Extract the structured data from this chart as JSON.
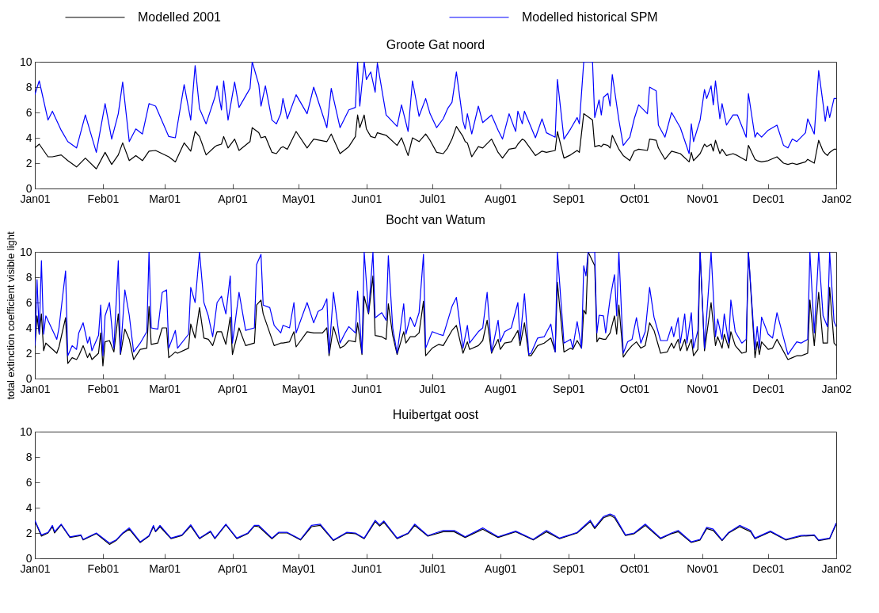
{
  "chart_data": [
    {
      "type": "line",
      "title": "Groote Gat noord",
      "legend": "top",
      "xlim": [
        "2001-01-01",
        "2002-01-01"
      ],
      "xticks": [
        {
          "value": "2001-01-01",
          "label": "Jan01"
        },
        {
          "value": "2001-02-01",
          "label": "Feb01"
        },
        {
          "value": "2001-03-01",
          "label": "Mar01"
        },
        {
          "value": "2001-04-01",
          "label": "Apr01"
        },
        {
          "value": "2001-05-01",
          "label": "May01"
        },
        {
          "value": "2001-06-01",
          "label": "Jun01"
        },
        {
          "value": "2001-07-01",
          "label": "Jul01"
        },
        {
          "value": "2001-08-01",
          "label": "Aug01"
        },
        {
          "value": "2001-09-01",
          "label": "Sep01"
        },
        {
          "value": "2001-10-01",
          "label": "Oct01"
        },
        {
          "value": "2001-11-01",
          "label": "Nov01"
        },
        {
          "value": "2001-12-01",
          "label": "Dec01"
        },
        {
          "value": "2002-01-01",
          "label": "Jan02"
        }
      ],
      "ylim": [
        0,
        10
      ],
      "yticks": [
        0,
        2,
        4,
        6,
        8,
        10
      ],
      "x": [
        "2001-01-01",
        "2001-01-03",
        "2001-01-07",
        "2001-01-09",
        "2001-01-13",
        "2001-01-16",
        "2001-01-20",
        "2001-01-24",
        "2001-01-29",
        "2001-02-02",
        "2001-02-05",
        "2001-02-08",
        "2001-02-10",
        "2001-02-13",
        "2001-02-16",
        "2001-02-19",
        "2001-02-22",
        "2001-02-25",
        "2001-03-03",
        "2001-03-06",
        "2001-03-10",
        "2001-03-13",
        "2001-03-15",
        "2001-03-17",
        "2001-03-20",
        "2001-03-24",
        "2001-03-25",
        "2001-03-27",
        "2001-03-28",
        "2001-03-30",
        "2001-04-02",
        "2001-04-04",
        "2001-04-09",
        "2001-04-10",
        "2001-04-13",
        "2001-04-14",
        "2001-04-16",
        "2001-04-19",
        "2001-04-21",
        "2001-04-23",
        "2001-04-24",
        "2001-04-26",
        "2001-04-30",
        "2001-05-05",
        "2001-05-08",
        "2001-05-14",
        "2001-05-16",
        "2001-05-20",
        "2001-05-24",
        "2001-05-27",
        "2001-05-28",
        "2001-05-29",
        "2001-05-31",
        "2001-06-01",
        "2001-06-03",
        "2001-06-05",
        "2001-06-06",
        "2001-06-10",
        "2001-06-15",
        "2001-06-17",
        "2001-06-20",
        "2001-06-22",
        "2001-06-25",
        "2001-06-28",
        "2001-06-30",
        "2001-07-03",
        "2001-07-06",
        "2001-07-08",
        "2001-07-10",
        "2001-07-12",
        "2001-07-15",
        "2001-07-16",
        "2001-07-17",
        "2001-07-19",
        "2001-07-22",
        "2001-07-24",
        "2001-07-28",
        "2001-07-31",
        "2001-08-02",
        "2001-08-05",
        "2001-08-08",
        "2001-08-09",
        "2001-08-11",
        "2001-08-12",
        "2001-08-17",
        "2001-08-20",
        "2001-08-22",
        "2001-08-26",
        "2001-08-27",
        "2001-08-30",
        "2001-09-02",
        "2001-09-05",
        "2001-09-06",
        "2001-09-08",
        "2001-09-12",
        "2001-09-13",
        "2001-09-15",
        "2001-09-16",
        "2001-09-17",
        "2001-09-19",
        "2001-09-20",
        "2001-09-21",
        "2001-09-24",
        "2001-09-26",
        "2001-09-29",
        "2001-10-01",
        "2001-10-03",
        "2001-10-07",
        "2001-10-08",
        "2001-10-11",
        "2001-10-12",
        "2001-10-15",
        "2001-10-18",
        "2001-10-22",
        "2001-10-26",
        "2001-10-27",
        "2001-10-28",
        "2001-10-31",
        "2001-11-02",
        "2001-11-03",
        "2001-11-05",
        "2001-11-06",
        "2001-11-07",
        "2001-11-09",
        "2001-11-10",
        "2001-11-12",
        "2001-11-15",
        "2001-11-17",
        "2001-11-21",
        "2001-11-22",
        "2001-11-25",
        "2001-11-26",
        "2001-11-28",
        "2001-12-01",
        "2001-12-05",
        "2001-12-08",
        "2001-12-10",
        "2001-12-12",
        "2001-12-14",
        "2001-12-18",
        "2001-12-19",
        "2001-12-22",
        "2001-12-24",
        "2001-12-26",
        "2001-12-27",
        "2001-12-28",
        "2001-12-29",
        "2001-12-31",
        "2002-01-01"
      ],
      "series": [
        {
          "name": "Modelled 2001",
          "color": "#000000",
          "values": [
            3.2,
            3.5,
            2.5,
            2.5,
            2.65,
            2.2,
            1.7,
            2.4,
            1.55,
            2.85,
            1.9,
            2.65,
            3.6,
            2.2,
            2.6,
            2.2,
            2.95,
            3.0,
            2.5,
            2.1,
            3.6,
            2.95,
            4.5,
            4.1,
            2.65,
            3.3,
            3.4,
            3.5,
            4.1,
            3.2,
            3.9,
            3.0,
            3.7,
            4.8,
            4.4,
            4.0,
            4.1,
            2.85,
            2.75,
            3.2,
            3.3,
            3.1,
            4.5,
            3.2,
            3.9,
            3.7,
            4.3,
            2.75,
            3.3,
            4.1,
            5.8,
            4.8,
            5.8,
            4.7,
            4.1,
            4.0,
            4.4,
            4.2,
            3.4,
            4.0,
            2.6,
            4.0,
            3.7,
            4.3,
            3.8,
            2.85,
            2.75,
            3.2,
            3.9,
            4.9,
            4.1,
            3.7,
            3.6,
            2.5,
            3.3,
            3.2,
            3.9,
            2.85,
            2.4,
            3.1,
            3.2,
            3.5,
            3.9,
            3.8,
            2.6,
            2.95,
            2.85,
            3.0,
            4.5,
            2.4,
            2.65,
            3.0,
            2.85,
            5.9,
            5.4,
            3.3,
            3.4,
            3.3,
            3.5,
            3.4,
            3.2,
            4.2,
            3.1,
            2.6,
            2.2,
            2.95,
            3.1,
            3.0,
            3.9,
            3.8,
            3.2,
            2.3,
            2.95,
            2.75,
            2.1,
            2.85,
            2.2,
            2.75,
            3.5,
            3.3,
            3.5,
            2.95,
            3.8,
            2.75,
            3.1,
            2.6,
            2.75,
            2.6,
            2.2,
            3.4,
            2.3,
            2.2,
            2.1,
            2.2,
            2.5,
            2.0,
            1.9,
            2.0,
            1.9,
            2.1,
            2.3,
            2.0,
            3.8,
            2.95,
            2.75,
            2.6,
            2.85,
            3.1,
            3.1
          ]
        },
        {
          "name": "Modelled historical SPM",
          "color": "#0000ff",
          "values": [
            7.4,
            8.5,
            5.4,
            6.1,
            4.6,
            3.7,
            3.2,
            5.8,
            2.85,
            6.7,
            3.9,
            5.9,
            8.4,
            3.7,
            4.7,
            4.3,
            6.7,
            6.5,
            4.1,
            4.0,
            8.2,
            5.4,
            9.7,
            6.3,
            5.1,
            7.2,
            8.1,
            6.2,
            8.5,
            5.4,
            8.4,
            6.4,
            7.9,
            10,
            8.2,
            6.5,
            8.1,
            5.4,
            5.1,
            5.9,
            7.1,
            5.5,
            7.4,
            5.9,
            8.0,
            4.8,
            7.9,
            4.8,
            6.2,
            6.4,
            10,
            6.5,
            10,
            8.6,
            9.2,
            7.6,
            9.9,
            5.8,
            4.9,
            6.6,
            4.5,
            8.5,
            5.7,
            7.1,
            5.9,
            4.8,
            5.5,
            6.3,
            6.8,
            9.2,
            5.3,
            4.7,
            5.9,
            4.3,
            6.5,
            5.2,
            5.8,
            4.6,
            3.9,
            5.9,
            4.5,
            6.1,
            5.1,
            6.1,
            4.0,
            5.5,
            4.4,
            4.05,
            8.6,
            3.9,
            4.7,
            5.6,
            5.1,
            10,
            10,
            5.6,
            7.0,
            5.8,
            7.2,
            7.5,
            6.5,
            9.0,
            5.4,
            3.4,
            4.05,
            5.5,
            6.6,
            5.9,
            8.0,
            7.7,
            5.0,
            4.05,
            6.0,
            4.8,
            2.75,
            5.1,
            3.7,
            5.4,
            7.8,
            7.1,
            8.1,
            6.6,
            8.5,
            5.5,
            6.7,
            5.0,
            5.8,
            5.8,
            4.05,
            7.5,
            4.05,
            4.4,
            4.05,
            4.6,
            5.0,
            3.4,
            3.2,
            3.9,
            3.7,
            4.4,
            5.5,
            4.3,
            9.3,
            6.7,
            5.3,
            6.5,
            5.6,
            7.1,
            7.1
          ]
        }
      ]
    },
    {
      "type": "line",
      "title": "Bocht van Watum",
      "ylabel": "total extinction coefficient visible light",
      "xlim": [
        "2001-01-01",
        "2002-01-01"
      ],
      "xticks": [
        {
          "value": "2001-01-01",
          "label": "Jan01"
        },
        {
          "value": "2001-02-01",
          "label": "Feb01"
        },
        {
          "value": "2001-03-01",
          "label": "Mar01"
        },
        {
          "value": "2001-04-01",
          "label": "Apr01"
        },
        {
          "value": "2001-05-01",
          "label": "May01"
        },
        {
          "value": "2001-06-01",
          "label": "Jun01"
        },
        {
          "value": "2001-07-01",
          "label": "Jul01"
        },
        {
          "value": "2001-08-01",
          "label": "Aug01"
        },
        {
          "value": "2001-09-01",
          "label": "Sep01"
        },
        {
          "value": "2001-10-01",
          "label": "Oct01"
        },
        {
          "value": "2001-11-01",
          "label": "Nov01"
        },
        {
          "value": "2001-12-01",
          "label": "Dec01"
        },
        {
          "value": "2002-01-01",
          "label": "Jan02"
        }
      ],
      "ylim": [
        0,
        10
      ],
      "yticks": [
        0,
        2,
        4,
        6,
        8,
        10
      ],
      "x": [
        "2001-01-01",
        "2001-01-02",
        "2001-01-03",
        "2001-01-04",
        "2001-01-05",
        "2001-01-06",
        "2001-01-11",
        "2001-01-12",
        "2001-01-15",
        "2001-01-16",
        "2001-01-18",
        "2001-01-20",
        "2001-01-21",
        "2001-01-23",
        "2001-01-25",
        "2001-01-26",
        "2001-01-27",
        "2001-01-30",
        "2001-01-31",
        "2001-02-01",
        "2001-02-02",
        "2001-02-04",
        "2001-02-06",
        "2001-02-08",
        "2001-02-09",
        "2001-02-11",
        "2001-02-13",
        "2001-02-15",
        "2001-02-18",
        "2001-02-21",
        "2001-02-22",
        "2001-02-23",
        "2001-02-26",
        "2001-02-28",
        "2001-03-02",
        "2001-03-03",
        "2001-03-06",
        "2001-03-07",
        "2001-03-12",
        "2001-03-13",
        "2001-03-15",
        "2001-03-17",
        "2001-03-19",
        "2001-03-21",
        "2001-03-23",
        "2001-03-25",
        "2001-03-27",
        "2001-03-29",
        "2001-03-31",
        "2001-04-01",
        "2001-04-04",
        "2001-04-07",
        "2001-04-11",
        "2001-04-12",
        "2001-04-14",
        "2001-04-15",
        "2001-04-18",
        "2001-04-20",
        "2001-04-23",
        "2001-04-24",
        "2001-04-27",
        "2001-04-29",
        "2001-04-30",
        "2001-05-05",
        "2001-05-08",
        "2001-05-10",
        "2001-05-12",
        "2001-05-14",
        "2001-05-15",
        "2001-05-17",
        "2001-05-20",
        "2001-05-22",
        "2001-05-24",
        "2001-05-27",
        "2001-05-28",
        "2001-05-30",
        "2001-05-31",
        "2001-06-02",
        "2001-06-04",
        "2001-06-05",
        "2001-06-08",
        "2001-06-10",
        "2001-06-11",
        "2001-06-13",
        "2001-06-15",
        "2001-06-18",
        "2001-06-19",
        "2001-06-21",
        "2001-06-23",
        "2001-06-25",
        "2001-06-27",
        "2001-06-28",
        "2001-07-01",
        "2001-07-04",
        "2001-07-06",
        "2001-07-10",
        "2001-07-12",
        "2001-07-15",
        "2001-07-17",
        "2001-07-18",
        "2001-07-22",
        "2001-07-24",
        "2001-07-26",
        "2001-07-28",
        "2001-07-29",
        "2001-07-31",
        "2001-08-01",
        "2001-08-03",
        "2001-08-06",
        "2001-08-09",
        "2001-08-10",
        "2001-08-12",
        "2001-08-14",
        "2001-08-15",
        "2001-08-18",
        "2001-08-21",
        "2001-08-24",
        "2001-08-26",
        "2001-08-27",
        "2001-08-30",
        "2001-09-02",
        "2001-09-03",
        "2001-09-05",
        "2001-09-07",
        "2001-09-08",
        "2001-09-09",
        "2001-09-10",
        "2001-09-13",
        "2001-09-14",
        "2001-09-15",
        "2001-09-17",
        "2001-09-18",
        "2001-09-20",
        "2001-09-22",
        "2001-09-23",
        "2001-09-24",
        "2001-09-26",
        "2001-09-28",
        "2001-09-30",
        "2001-10-02",
        "2001-10-04",
        "2001-10-06",
        "2001-10-08",
        "2001-10-10",
        "2001-10-13",
        "2001-10-16",
        "2001-10-18",
        "2001-10-19",
        "2001-10-21",
        "2001-10-22",
        "2001-10-24",
        "2001-10-25",
        "2001-10-27",
        "2001-10-28",
        "2001-10-30",
        "2001-10-31",
        "2001-11-02",
        "2001-11-05",
        "2001-11-07",
        "2001-11-08",
        "2001-11-10",
        "2001-11-11",
        "2001-11-13",
        "2001-11-14",
        "2001-11-16",
        "2001-11-19",
        "2001-11-21",
        "2001-11-22",
        "2001-11-25",
        "2001-11-26",
        "2001-11-27",
        "2001-11-28",
        "2001-12-01",
        "2001-12-03",
        "2001-12-05",
        "2001-12-10",
        "2001-12-12",
        "2001-12-14",
        "2001-12-16",
        "2001-12-19",
        "2001-12-20",
        "2001-12-22",
        "2001-12-24",
        "2001-12-26",
        "2001-12-28",
        "2001-12-29",
        "2001-12-31",
        "2002-01-01"
      ],
      "series": [
        {
          "color": "#000000",
          "values": [
            2.4,
            4.95,
            3.5,
            5.1,
            2.2,
            2.8,
            2.0,
            2.5,
            4.8,
            1.2,
            1.65,
            1.5,
            1.8,
            2.6,
            1.65,
            2.0,
            1.5,
            2.0,
            3.6,
            1.0,
            2.9,
            3.0,
            2.1,
            5.1,
            1.9,
            3.9,
            3.1,
            1.5,
            2.3,
            2.4,
            5.7,
            2.7,
            2.8,
            4.0,
            4.0,
            1.65,
            2.1,
            2.0,
            2.4,
            4.3,
            3.2,
            5.6,
            3.2,
            3.1,
            2.6,
            3.7,
            3.7,
            2.7,
            4.85,
            1.9,
            4.0,
            2.6,
            2.8,
            5.8,
            6.2,
            5.1,
            3.6,
            2.6,
            2.8,
            2.8,
            2.9,
            3.7,
            2.5,
            3.7,
            3.6,
            3.6,
            3.6,
            4.0,
            1.8,
            4.1,
            2.4,
            2.6,
            3.0,
            2.9,
            4.4,
            1.9,
            6.5,
            5.1,
            8.1,
            3.4,
            3.3,
            3.1,
            5.9,
            3.4,
            1.9,
            3.7,
            2.8,
            3.3,
            3.3,
            3.6,
            6.1,
            1.8,
            2.4,
            2.7,
            2.6,
            3.8,
            4.2,
            2.0,
            2.9,
            2.3,
            2.6,
            3.0,
            4.6,
            2.0,
            2.4,
            3.1,
            2.3,
            2.8,
            2.9,
            3.8,
            2.6,
            4.4,
            1.8,
            1.8,
            2.6,
            2.8,
            3.2,
            2.1,
            7.6,
            2.1,
            2.4,
            2.3,
            3.0,
            2.4,
            5.4,
            5.1,
            10,
            8.9,
            2.9,
            3.2,
            3.1,
            3.1,
            3.6,
            4.95,
            3.5,
            5.8,
            1.7,
            2.2,
            2.6,
            2.9,
            2.4,
            2.6,
            4.4,
            3.8,
            2.0,
            2.1,
            2.8,
            2.4,
            3.1,
            2.2,
            3.1,
            2.2,
            3.1,
            1.8,
            2.3,
            10,
            2.2,
            6.0,
            2.6,
            3.3,
            2.4,
            3.5,
            2.4,
            3.7,
            2.6,
            2.0,
            2.1,
            10,
            1.65,
            2.9,
            1.9,
            2.9,
            2.3,
            2.4,
            3.1,
            1.5,
            1.65,
            1.8,
            1.8,
            2.0,
            6.2,
            2.6,
            6.8,
            2.8,
            2.8,
            7.2,
            2.8,
            2.6
          ]
        },
        {
          "color": "#0000ff",
          "values": [
            2.6,
            7.8,
            3.5,
            9.3,
            3.5,
            4.95,
            3.1,
            4.0,
            8.5,
            1.8,
            2.6,
            2.3,
            3.6,
            4.4,
            2.8,
            3.3,
            2.2,
            3.4,
            5.8,
            1.8,
            4.95,
            6.0,
            2.4,
            9.3,
            2.0,
            7.0,
            5.0,
            2.1,
            2.8,
            3.7,
            10,
            4.0,
            3.9,
            6.8,
            7.0,
            2.4,
            3.8,
            2.4,
            3.5,
            7.2,
            6.0,
            10,
            6.0,
            4.95,
            3.3,
            6.0,
            6.5,
            5.1,
            8.1,
            2.8,
            6.8,
            3.8,
            4.0,
            9.0,
            9.8,
            5.8,
            5.6,
            4.2,
            3.6,
            4.2,
            4.0,
            6.0,
            3.6,
            6.0,
            4.4,
            5.3,
            5.5,
            6.3,
            2.0,
            6.8,
            2.8,
            3.5,
            4.1,
            3.6,
            6.9,
            2.0,
            10,
            5.2,
            10,
            4.8,
            5.2,
            4.6,
            9.7,
            4.0,
            2.0,
            5.9,
            3.5,
            4.85,
            4.1,
            5.2,
            9.8,
            2.4,
            3.7,
            3.5,
            3.4,
            5.7,
            6.4,
            2.4,
            4.2,
            2.8,
            3.7,
            4.0,
            6.8,
            2.1,
            2.9,
            4.6,
            2.9,
            3.7,
            4.0,
            6.0,
            3.0,
            6.7,
            1.9,
            2.0,
            3.2,
            3.3,
            4.3,
            2.1,
            10,
            2.8,
            3.1,
            2.4,
            4.5,
            2.4,
            8.9,
            8.1,
            10,
            10,
            3.6,
            5.0,
            4.95,
            3.6,
            6.3,
            8.2,
            4.95,
            10,
            2.0,
            2.9,
            3.1,
            4.8,
            2.8,
            3.7,
            7.2,
            4.85,
            3.0,
            3.0,
            4.1,
            3.3,
            4.8,
            2.8,
            5.1,
            2.8,
            5.2,
            2.4,
            3.8,
            10,
            2.4,
            10,
            3.3,
            4.7,
            3.1,
            5.1,
            2.8,
            6.2,
            3.7,
            2.8,
            3.1,
            10,
            2.3,
            4.1,
            2.4,
            4.85,
            3.5,
            3.2,
            5.2,
            1.9,
            2.4,
            2.9,
            2.8,
            3.1,
            10,
            3.6,
            10,
            4.95,
            4.1,
            10,
            4.5,
            4.1
          ]
        }
      ]
    },
    {
      "type": "line",
      "title": "Huibertgat oost",
      "xlim": [
        "2001-01-01",
        "2002-01-01"
      ],
      "xticks": [
        {
          "value": "2001-01-01",
          "label": "Jan01"
        },
        {
          "value": "2001-02-01",
          "label": "Feb01"
        },
        {
          "value": "2001-03-01",
          "label": "Mar01"
        },
        {
          "value": "2001-04-01",
          "label": "Apr01"
        },
        {
          "value": "2001-05-01",
          "label": "May01"
        },
        {
          "value": "2001-06-01",
          "label": "Jun01"
        },
        {
          "value": "2001-07-01",
          "label": "Jul01"
        },
        {
          "value": "2001-08-01",
          "label": "Aug01"
        },
        {
          "value": "2001-09-01",
          "label": "Sep01"
        },
        {
          "value": "2001-10-01",
          "label": "Oct01"
        },
        {
          "value": "2001-11-01",
          "label": "Nov01"
        },
        {
          "value": "2001-12-01",
          "label": "Dec01"
        },
        {
          "value": "2002-01-01",
          "label": "Jan02"
        }
      ],
      "ylim": [
        0,
        10
      ],
      "yticks": [
        0,
        2,
        4,
        6,
        8,
        10
      ],
      "x": [
        "2001-01-01",
        "2001-01-04",
        "2001-01-07",
        "2001-01-09",
        "2001-01-10",
        "2001-01-13",
        "2001-01-17",
        "2001-01-22",
        "2001-01-23",
        "2001-01-29",
        "2001-02-04",
        "2001-02-07",
        "2001-02-10",
        "2001-02-13",
        "2001-02-18",
        "2001-02-22",
        "2001-02-24",
        "2001-02-25",
        "2001-02-27",
        "2001-03-04",
        "2001-03-09",
        "2001-03-13",
        "2001-03-17",
        "2001-03-22",
        "2001-03-24",
        "2001-03-29",
        "2001-04-03",
        "2001-04-08",
        "2001-04-11",
        "2001-04-13",
        "2001-04-19",
        "2001-04-22",
        "2001-04-26",
        "2001-05-02",
        "2001-05-07",
        "2001-05-11",
        "2001-05-17",
        "2001-05-23",
        "2001-05-27",
        "2001-05-31",
        "2001-06-05",
        "2001-06-07",
        "2001-06-09",
        "2001-06-15",
        "2001-06-20",
        "2001-06-23",
        "2001-06-29",
        "2001-07-06",
        "2001-07-11",
        "2001-07-16",
        "2001-07-24",
        "2001-07-31",
        "2001-08-08",
        "2001-08-16",
        "2001-08-22",
        "2001-08-28",
        "2001-09-05",
        "2001-09-11",
        "2001-09-13",
        "2001-09-17",
        "2001-09-20",
        "2001-09-22",
        "2001-09-27",
        "2001-10-01",
        "2001-10-06",
        "2001-10-13",
        "2001-10-18",
        "2001-10-21",
        "2001-10-27",
        "2001-10-31",
        "2001-11-03",
        "2001-11-06",
        "2001-11-10",
        "2001-11-13",
        "2001-11-18",
        "2001-11-23",
        "2001-11-25",
        "2001-12-02",
        "2001-12-09",
        "2001-12-16",
        "2001-12-22",
        "2001-12-24",
        "2001-12-29",
        "2002-01-01"
      ],
      "series": [
        {
          "color": "#000000",
          "values": [
            2.95,
            1.75,
            2.0,
            2.5,
            2.0,
            2.65,
            1.65,
            1.8,
            1.45,
            1.95,
            1.1,
            1.4,
            1.95,
            2.3,
            1.25,
            1.75,
            2.5,
            2.1,
            2.5,
            1.55,
            1.8,
            2.55,
            1.55,
            2.1,
            1.55,
            2.65,
            1.55,
            1.95,
            2.55,
            2.5,
            1.55,
            2.0,
            2.0,
            1.45,
            2.5,
            2.6,
            1.4,
            2.0,
            1.95,
            1.55,
            2.9,
            2.55,
            2.85,
            1.55,
            1.95,
            2.6,
            1.75,
            2.1,
            2.1,
            1.65,
            2.3,
            1.65,
            2.1,
            1.45,
            2.1,
            1.55,
            2.0,
            2.9,
            2.35,
            3.2,
            3.4,
            3.2,
            1.8,
            1.95,
            2.6,
            1.55,
            1.95,
            2.1,
            1.25,
            1.45,
            2.35,
            2.2,
            1.4,
            2.0,
            2.5,
            2.1,
            1.55,
            2.1,
            1.45,
            1.75,
            1.8,
            1.4,
            1.55,
            2.7
          ]
        },
        {
          "color": "#0000ff",
          "values": [
            3.0,
            1.85,
            2.05,
            2.6,
            2.1,
            2.7,
            1.7,
            1.85,
            1.5,
            2.0,
            1.2,
            1.45,
            2.0,
            2.4,
            1.3,
            1.8,
            2.6,
            2.15,
            2.6,
            1.6,
            1.85,
            2.65,
            1.6,
            2.15,
            1.6,
            2.7,
            1.6,
            2.0,
            2.6,
            2.6,
            1.6,
            2.05,
            2.05,
            1.5,
            2.6,
            2.7,
            1.45,
            2.05,
            2.0,
            1.6,
            3.0,
            2.65,
            2.95,
            1.6,
            2.0,
            2.7,
            1.8,
            2.2,
            2.2,
            1.7,
            2.4,
            1.7,
            2.15,
            1.5,
            2.2,
            1.6,
            2.05,
            3.0,
            2.45,
            3.3,
            3.5,
            3.35,
            1.85,
            2.0,
            2.7,
            1.6,
            2.0,
            2.2,
            1.3,
            1.5,
            2.45,
            2.3,
            1.45,
            2.05,
            2.6,
            2.2,
            1.6,
            2.15,
            1.5,
            1.8,
            1.85,
            1.45,
            1.6,
            2.8
          ]
        }
      ]
    }
  ]
}
